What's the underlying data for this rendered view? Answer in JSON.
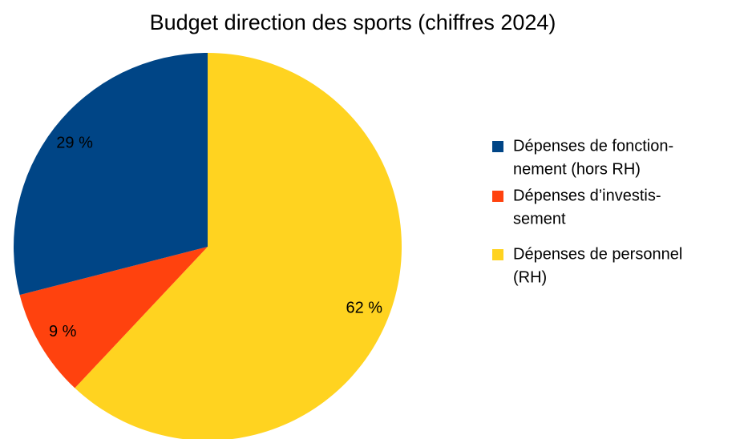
{
  "chart_data": {
    "type": "pie",
    "title": "Budget  direction des sports (chiffres 2024)",
    "categories": [
      [
        "Dépenses de fonction-",
        "nement (hors RH)"
      ],
      [
        "Dépenses d’investis-",
        "sement"
      ],
      [
        "Dépenses de personnel",
        "(RH)"
      ]
    ],
    "values": [
      29,
      9,
      62
    ],
    "value_labels": [
      "29 %",
      "9 %",
      "62 %"
    ],
    "colors": [
      "#004586",
      "#ff420e",
      "#ffd320"
    ],
    "legend": "right"
  }
}
